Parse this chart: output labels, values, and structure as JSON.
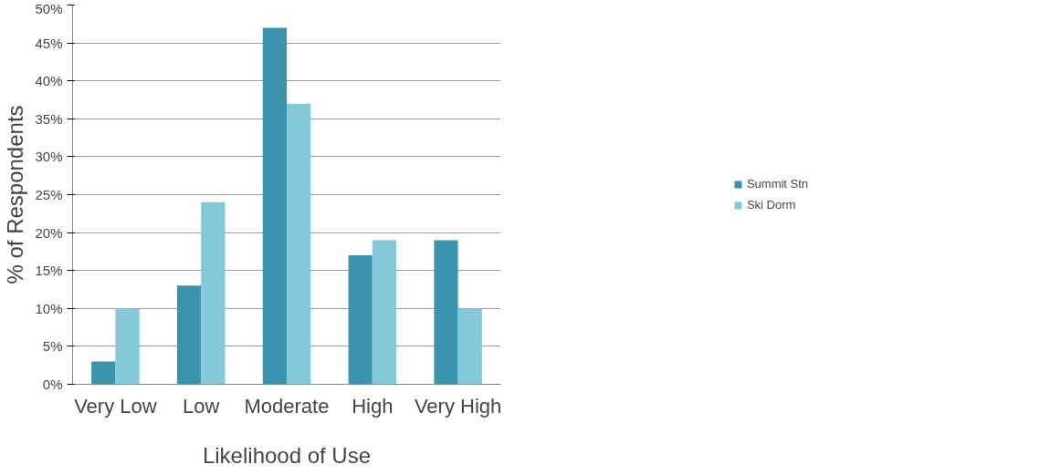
{
  "chart_data": {
    "type": "bar",
    "xlabel": "Likelihood of Use",
    "ylabel": "% of Respondents",
    "categories": [
      "Very Low",
      "Low",
      "Moderate",
      "High",
      "Very High"
    ],
    "series": [
      {
        "name": "Summit Stn",
        "color": "#3a94ad",
        "values": [
          3,
          13,
          47,
          17,
          19
        ]
      },
      {
        "name": "Ski Dorm",
        "color": "#84c8d9",
        "values": [
          10,
          24,
          37,
          19,
          10
        ]
      }
    ],
    "ylim": [
      0,
      50
    ],
    "yticks": [
      {
        "value": 0,
        "label": "0%"
      },
      {
        "value": 5,
        "label": "5%"
      },
      {
        "value": 10,
        "label": "10%"
      },
      {
        "value": 15,
        "label": "15%"
      },
      {
        "value": 20,
        "label": "20%"
      },
      {
        "value": 25,
        "label": "25%"
      },
      {
        "value": 30,
        "label": "30%"
      },
      {
        "value": 35,
        "label": "35%"
      },
      {
        "value": 40,
        "label": "40%"
      },
      {
        "value": 45,
        "label": "45%"
      },
      {
        "value": 50,
        "label": "50%"
      }
    ],
    "grid": "y",
    "legend": "right"
  }
}
